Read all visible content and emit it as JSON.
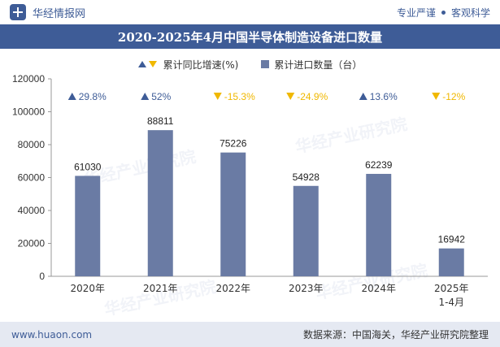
{
  "header": {
    "brand": "华经情报网",
    "tagline_left": "专业严谨",
    "tagline_right": "客观科学"
  },
  "footer": {
    "site": "www.huaon.com",
    "source": "数据来源：中国海关，华经产业研究院整理"
  },
  "watermark": "华经产业研究院",
  "colors": {
    "brand": "#3e5c97",
    "bar": "#6a7ba4",
    "up": "#3e5c97",
    "down": "#f0b800",
    "footer_bg": "#e5e9f2"
  },
  "chart_data": {
    "type": "bar",
    "title": "2020-2025年4月中国半导体制造设备进口数量",
    "categories": [
      "2020年",
      "2021年",
      "2022年",
      "2023年",
      "2024年",
      "2025年1-4月"
    ],
    "series": [
      {
        "name": "累计进口数量（台）",
        "values": [
          61030,
          88811,
          75226,
          54928,
          62239,
          16942
        ],
        "data_labels": [
          "61030",
          "88811",
          "75226",
          "54928",
          "62239",
          "16942"
        ]
      },
      {
        "name": "累计同比增速(%)",
        "values": [
          29.8,
          52,
          -15.3,
          -24.9,
          13.6,
          -12
        ],
        "data_labels": [
          "29.8%",
          "52%",
          "-15.3%",
          "-24.9%",
          "13.6%",
          "-12%"
        ]
      }
    ],
    "ylim": [
      0,
      120000
    ],
    "yticks": [
      "0",
      "20000",
      "40000",
      "60000",
      "80000",
      "100000",
      "120000"
    ],
    "grid": false,
    "legend": "top-center"
  }
}
